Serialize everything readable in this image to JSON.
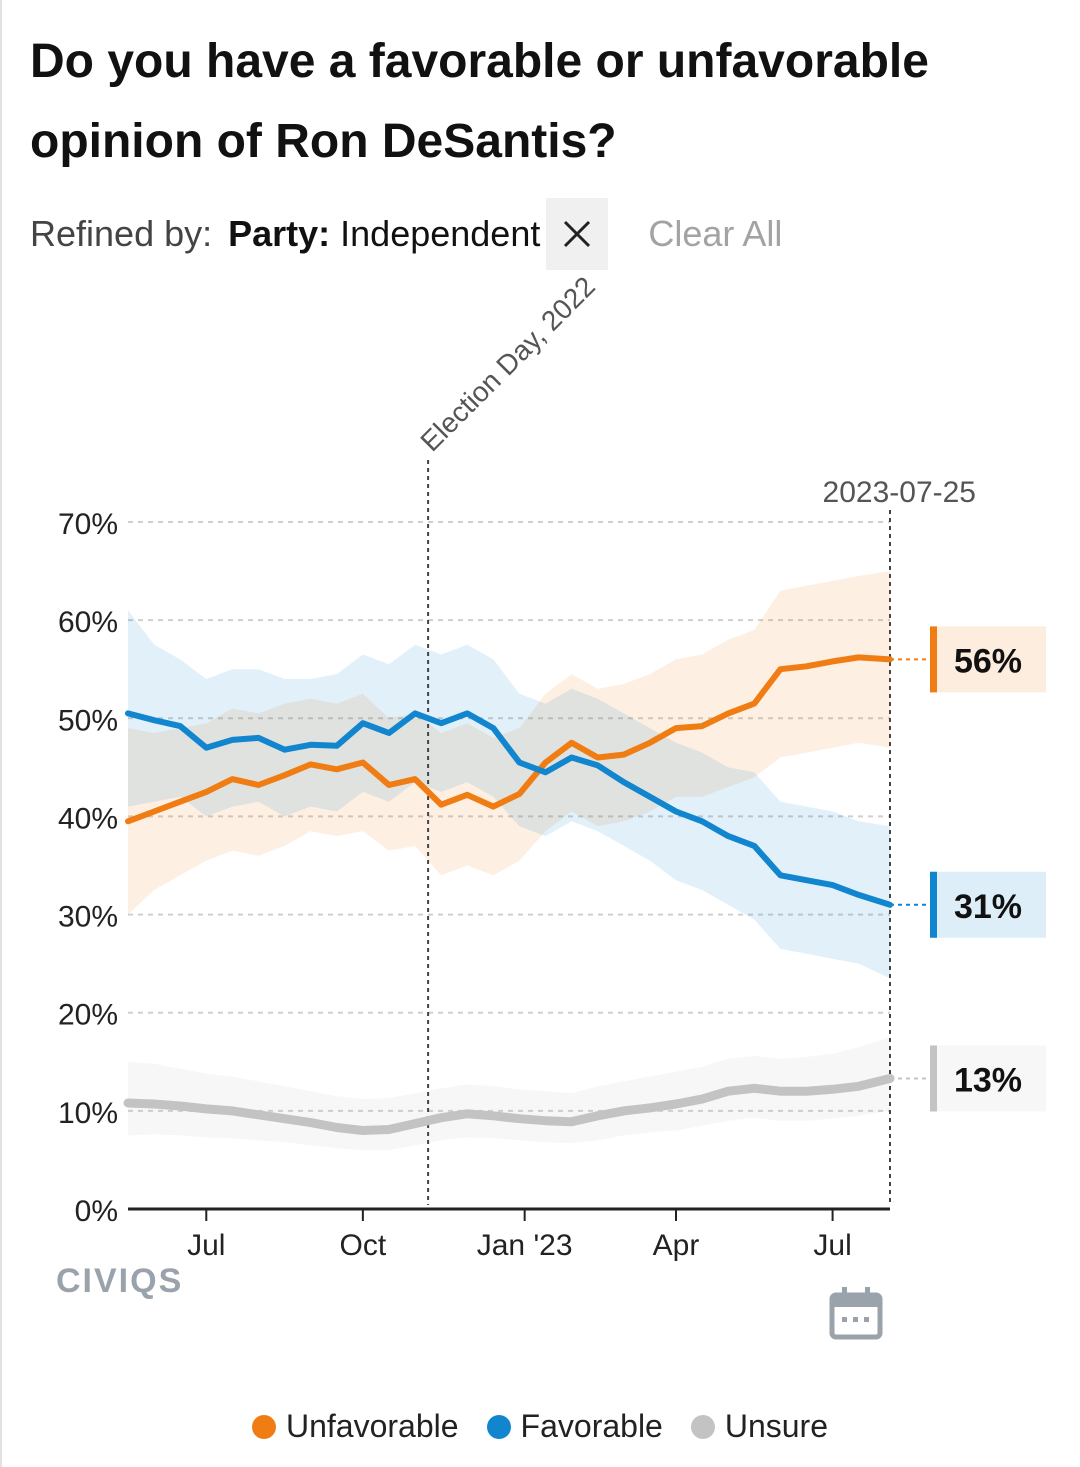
{
  "title": "Do you have a favorable or unfavorable opinion of Ron DeSantis?",
  "filter": {
    "label": "Refined by:",
    "key": "Party:",
    "value": "Independent",
    "clear_all": "Clear All"
  },
  "brand": "CIVIQS",
  "icons": {
    "remove": "close-icon",
    "calendar": "calendar-icon"
  },
  "colors": {
    "unfavorable": "#f07d13",
    "favorable": "#1285cf",
    "unsure": "#c3c3c3"
  },
  "chart_data": {
    "type": "line",
    "title": "Do you have a favorable or unfavorable opinion of Ron DeSantis?",
    "xlabel": "",
    "ylabel": "",
    "ylim": [
      0,
      70
    ],
    "yticks": [
      0,
      10,
      20,
      30,
      40,
      50,
      60,
      70
    ],
    "ytick_labels": [
      "0%",
      "10%",
      "20%",
      "30%",
      "40%",
      "50%",
      "60%",
      "70%"
    ],
    "xlim": [
      0,
      14.6
    ],
    "x_unit": "months since 2022-05-15",
    "xticks": [
      {
        "label": "Jul",
        "x": 1.5
      },
      {
        "label": "Oct",
        "x": 4.5
      },
      {
        "label": "Jan '23",
        "x": 7.6
      },
      {
        "label": "Apr",
        "x": 10.5
      },
      {
        "label": "Jul",
        "x": 13.5
      }
    ],
    "annotations": [
      {
        "label": "Election Day, 2022",
        "x": 5.75
      },
      {
        "label": "2023-07-25",
        "x": 14.6
      }
    ],
    "x": [
      0,
      0.5,
      1,
      1.5,
      2,
      2.5,
      3,
      3.5,
      4,
      4.5,
      5,
      5.5,
      6,
      6.5,
      7,
      7.5,
      8,
      8.5,
      9,
      9.5,
      10,
      10.5,
      11,
      11.5,
      12,
      12.5,
      13,
      13.5,
      14,
      14.6
    ],
    "series": [
      {
        "name": "Unfavorable",
        "color": "#f07d13",
        "end_label": "56%",
        "values": [
          39.5,
          40.5,
          41.5,
          42.5,
          43.8,
          43.2,
          44.2,
          45.3,
          44.8,
          45.5,
          43.2,
          43.8,
          41.2,
          42.2,
          41.0,
          42.3,
          45.5,
          47.5,
          46.0,
          46.3,
          47.5,
          49.0,
          49.2,
          50.5,
          51.5,
          55.0,
          55.3,
          55.8,
          56.2,
          56.0
        ],
        "ci_low": [
          30.0,
          32.5,
          34.0,
          35.5,
          36.5,
          36.0,
          37.0,
          38.5,
          38.0,
          38.5,
          36.5,
          37.0,
          34.0,
          35.0,
          34.0,
          35.5,
          38.5,
          40.5,
          39.0,
          39.5,
          40.5,
          42.0,
          42.0,
          43.0,
          44.0,
          46.0,
          46.5,
          47.0,
          47.5,
          47.0
        ],
        "ci_high": [
          49.0,
          48.5,
          49.0,
          49.5,
          51.0,
          50.5,
          51.5,
          52.0,
          51.5,
          52.5,
          50.0,
          50.5,
          48.5,
          49.5,
          48.0,
          49.0,
          52.5,
          54.5,
          53.0,
          53.5,
          54.5,
          56.0,
          56.5,
          58.0,
          59.0,
          63.0,
          63.5,
          64.0,
          64.5,
          65.0
        ]
      },
      {
        "name": "Favorable",
        "color": "#1285cf",
        "end_label": "31%",
        "values": [
          50.5,
          49.8,
          49.2,
          47.0,
          47.8,
          48.0,
          46.8,
          47.3,
          47.2,
          49.5,
          48.5,
          50.5,
          49.5,
          50.5,
          49.0,
          45.5,
          44.5,
          46.0,
          45.2,
          43.5,
          42.0,
          40.5,
          39.5,
          38.0,
          37.0,
          34.0,
          33.5,
          33.0,
          32.0,
          31.0
        ],
        "ci_low": [
          41.0,
          41.5,
          42.0,
          40.0,
          41.0,
          41.5,
          40.0,
          41.0,
          40.5,
          42.5,
          41.5,
          43.5,
          42.5,
          43.5,
          42.0,
          39.0,
          38.0,
          39.5,
          38.5,
          37.0,
          35.5,
          33.5,
          32.5,
          31.0,
          29.5,
          26.5,
          26.0,
          25.5,
          25.0,
          23.5
        ],
        "ci_high": [
          61.0,
          57.5,
          56.0,
          54.0,
          55.0,
          55.0,
          54.0,
          54.0,
          54.5,
          56.5,
          55.5,
          57.5,
          56.5,
          57.5,
          56.0,
          52.5,
          51.5,
          53.0,
          52.0,
          50.5,
          49.0,
          47.5,
          46.5,
          45.0,
          44.5,
          41.5,
          41.0,
          40.5,
          39.5,
          39.0
        ]
      },
      {
        "name": "Unsure",
        "color": "#c3c3c3",
        "end_label": "13%",
        "values": [
          10.8,
          10.7,
          10.5,
          10.2,
          10.0,
          9.6,
          9.2,
          8.8,
          8.3,
          8.0,
          8.1,
          8.7,
          9.3,
          9.7,
          9.5,
          9.2,
          9.0,
          8.9,
          9.5,
          10.0,
          10.3,
          10.7,
          11.2,
          12.0,
          12.3,
          12.0,
          12.0,
          12.2,
          12.5,
          13.3
        ],
        "ci_low": [
          7.5,
          7.6,
          7.5,
          7.3,
          7.2,
          7.0,
          6.8,
          6.5,
          6.2,
          6.0,
          6.0,
          6.5,
          7.0,
          7.3,
          7.2,
          7.0,
          6.8,
          6.7,
          7.0,
          7.5,
          7.8,
          8.0,
          8.5,
          9.0,
          9.3,
          9.0,
          9.0,
          9.2,
          9.5,
          10.0
        ],
        "ci_high": [
          15.0,
          14.8,
          14.3,
          13.8,
          13.5,
          13.0,
          12.5,
          12.0,
          11.5,
          11.2,
          11.3,
          11.8,
          12.3,
          12.7,
          12.5,
          12.2,
          12.0,
          11.8,
          12.5,
          13.0,
          13.5,
          14.0,
          14.5,
          15.3,
          15.6,
          15.3,
          15.5,
          15.8,
          16.5,
          17.5
        ]
      }
    ],
    "legend": [
      "Unfavorable",
      "Favorable",
      "Unsure"
    ],
    "legend_position": "bottom-center",
    "grid": true
  }
}
